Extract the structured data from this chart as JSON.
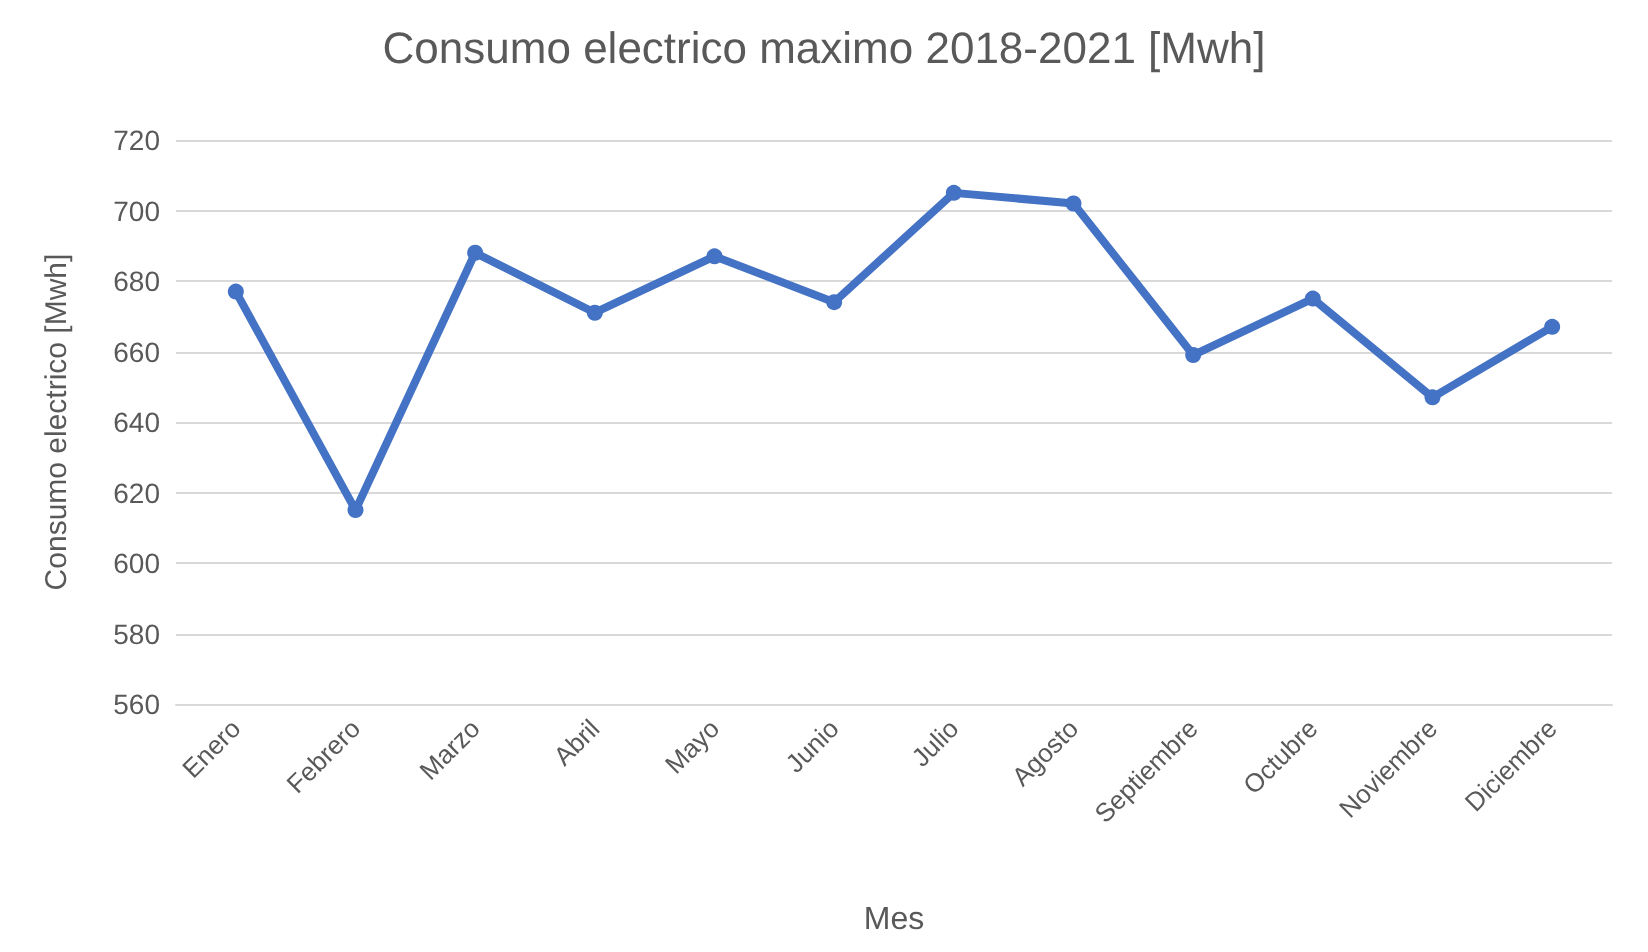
{
  "chart_data": {
    "type": "line",
    "title": "Consumo electrico maximo 2018-2021 [Mwh]",
    "xlabel": "Mes",
    "ylabel": "Consumo electrico [Mwh]",
    "categories": [
      "Enero",
      "Febrero",
      "Marzo",
      "Abril",
      "Mayo",
      "Junio",
      "Julio",
      "Agosto",
      "Septiembre",
      "Octubre",
      "Noviembre",
      "Diciembre"
    ],
    "series": [
      {
        "color": "#4472c4",
        "values": [
          677,
          615,
          688,
          671,
          687,
          674,
          705,
          702,
          659,
          675,
          647,
          667
        ]
      }
    ],
    "ylim": [
      560,
      720
    ],
    "yticks": [
      560,
      580,
      600,
      620,
      640,
      660,
      680,
      700,
      720
    ],
    "grid": "y",
    "marker": "circle",
    "line_style": "solid"
  }
}
